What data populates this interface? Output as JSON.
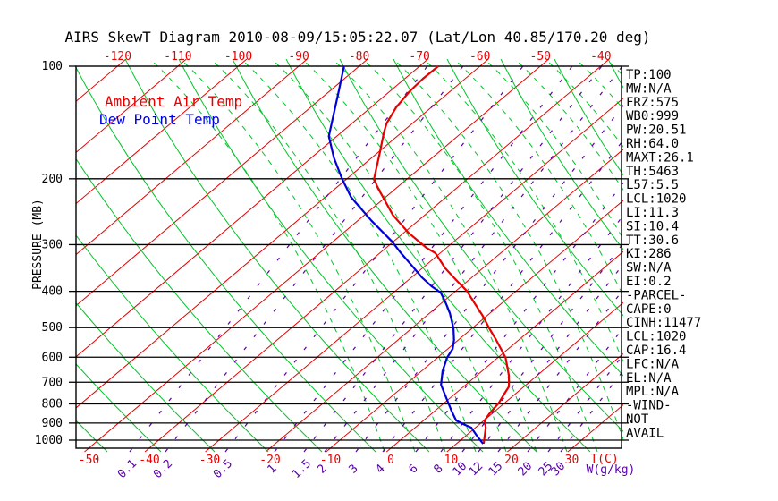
{
  "title": "AIRS SkewT Diagram 2010-08-09/15:05:22.07 (Lat/Lon 40.85/170.20 deg)",
  "legend": {
    "temp": "Ambient Air Temp",
    "dewpoint": "Dew Point Temp"
  },
  "axes": {
    "pressure_label": "PRESSURE (MB)",
    "pressure_ticks": [
      100,
      200,
      300,
      400,
      500,
      600,
      700,
      800,
      900,
      1000
    ],
    "temp_ticks_top": [
      -120,
      -110,
      -100,
      -90,
      -80,
      -70,
      -60,
      -50,
      -40
    ],
    "temp_ticks_bottom": [
      -50,
      -40,
      -30,
      -20,
      -10,
      0,
      10,
      20,
      30
    ],
    "temp_axis_label": "T(C)",
    "mixing_ratio_label": "W(g/kg)",
    "mixing_ratio_ticks": [
      {
        "v": "0.1",
        "x": 145
      },
      {
        "v": "0.2",
        "x": 185
      },
      {
        "v": "0.5",
        "x": 252
      },
      {
        "v": "1",
        "x": 307
      },
      {
        "v": "1.5",
        "x": 340
      },
      {
        "v": "2",
        "x": 363
      },
      {
        "v": "3",
        "x": 398
      },
      {
        "v": "4",
        "x": 428
      },
      {
        "v": "6",
        "x": 465
      },
      {
        "v": "8",
        "x": 493
      },
      {
        "v": "10",
        "x": 517
      },
      {
        "v": "12",
        "x": 535
      },
      {
        "v": "15",
        "x": 557
      },
      {
        "v": "20",
        "x": 590
      },
      {
        "v": "25",
        "x": 613
      },
      {
        "v": "30",
        "x": 627
      }
    ]
  },
  "side_panel": [
    "TP:100",
    "MW:N/A",
    "FRZ:575",
    "WB0:999",
    "PW:20.51",
    "RH:64.0",
    "MAXT:26.1",
    "TH:5463",
    "L57:5.5",
    "LCL:1020",
    "LI:11.3",
    "SI:10.4",
    "TT:30.6",
    "KI:286",
    "SW:N/A",
    "EI:0.2",
    "-PARCEL-",
    "CAPE:0",
    "CINH:11477",
    "LCL:1020",
    "CAP:16.4",
    "LFC:N/A",
    "EL:N/A",
    "MPL:N/A",
    "-WIND-",
    "NOT",
    "AVAIL"
  ],
  "colors": {
    "isotherm_red": "#e80000",
    "adiabat_green": "#00c428",
    "mixing_purple": "#5a00aa",
    "dewpoint_blue": "#0000d8",
    "grid_black": "#000000"
  },
  "chart_data": {
    "type": "line",
    "title": "AIRS SkewT Diagram 2010-08-09/15:05:22.07",
    "xlabel": "Temperature (C), skewed",
    "ylabel": "Pressure (MB), log scale",
    "ylim": [
      100,
      1050
    ],
    "grid": "skew-t background: isotherms every 10C, dry/moist adiabats, mixing-ratio lines",
    "legend_position": "top-left",
    "series": [
      {
        "name": "Ambient Air Temp",
        "color": "#e80000",
        "points_p_mb_t_c": [
          [
            100,
            -66.9
          ],
          [
            108,
            -67.0
          ],
          [
            117,
            -66.7
          ],
          [
            129,
            -65.8
          ],
          [
            142,
            -64.3
          ],
          [
            150,
            -63.0
          ],
          [
            170,
            -59.7
          ],
          [
            200,
            -55.5
          ],
          [
            212,
            -53.0
          ],
          [
            224,
            -50.4
          ],
          [
            250,
            -45.3
          ],
          [
            279,
            -39.2
          ],
          [
            306,
            -33.3
          ],
          [
            316,
            -30.8
          ],
          [
            347,
            -26.2
          ],
          [
            373,
            -22.1
          ],
          [
            399,
            -18.2
          ],
          [
            426,
            -15.0
          ],
          [
            465,
            -10.7
          ],
          [
            505,
            -6.9
          ],
          [
            540,
            -3.7
          ],
          [
            570,
            -1.2
          ],
          [
            602,
            1.3
          ],
          [
            673,
            5.4
          ],
          [
            719,
            7.5
          ],
          [
            759,
            8.3
          ],
          [
            794,
            9.0
          ],
          [
            852,
            9.6
          ],
          [
            886,
            10.1
          ],
          [
            926,
            11.7
          ],
          [
            1022,
            14.5
          ]
        ]
      },
      {
        "name": "Dew Point Temp",
        "color": "#0000d8",
        "points_p_mb_t_c": [
          [
            100,
            -82.5
          ],
          [
            117,
            -78.4
          ],
          [
            142,
            -73.4
          ],
          [
            154,
            -71.3
          ],
          [
            176,
            -66.2
          ],
          [
            200,
            -60.8
          ],
          [
            224,
            -55.7
          ],
          [
            259,
            -47.7
          ],
          [
            294,
            -40.3
          ],
          [
            316,
            -36.5
          ],
          [
            341,
            -32.3
          ],
          [
            367,
            -28.3
          ],
          [
            388,
            -24.9
          ],
          [
            403,
            -22.2
          ],
          [
            426,
            -19.7
          ],
          [
            457,
            -16.7
          ],
          [
            502,
            -13.1
          ],
          [
            540,
            -10.7
          ],
          [
            570,
            -9.2
          ],
          [
            602,
            -8.4
          ],
          [
            654,
            -6.5
          ],
          [
            711,
            -4.1
          ],
          [
            781,
            -0.1
          ],
          [
            838,
            2.9
          ],
          [
            886,
            5.4
          ],
          [
            910,
            7.7
          ],
          [
            926,
            9.3
          ],
          [
            973,
            11.8
          ],
          [
            1005,
            13.5
          ],
          [
            1022,
            14.4
          ]
        ]
      }
    ]
  }
}
